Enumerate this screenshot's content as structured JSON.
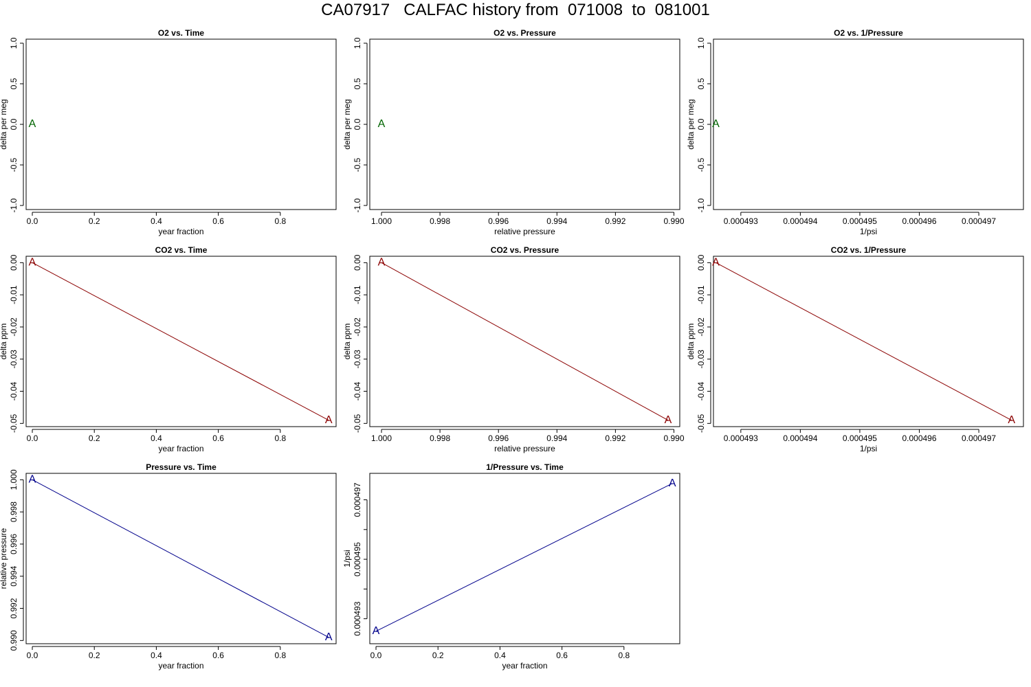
{
  "page": {
    "title": "CA07917   CALFAC history from  071008  to  081001"
  },
  "colors": {
    "o2": "#006400",
    "co2": "#8b0000",
    "pressure": "#00008b",
    "frame": "#000000"
  },
  "marker_label": "A",
  "chart_data": [
    {
      "type": "line",
      "title": "O2 vs. Time",
      "xlabel": "year fraction",
      "ylabel": "delta per meg",
      "x": [
        0.0
      ],
      "y": [
        0.0
      ],
      "xlim": [
        -0.02,
        0.98
      ],
      "ylim": [
        -1.05,
        1.05
      ],
      "xticks": [
        0.0,
        0.2,
        0.4,
        0.6,
        0.8
      ],
      "xtick_labels": [
        "0.0",
        "0.2",
        "0.4",
        "0.6",
        "0.8"
      ],
      "yticks": [
        -1.0,
        -0.5,
        0.0,
        0.5,
        1.0
      ],
      "ytick_labels": [
        "-1.0",
        "-0.5",
        "0.0",
        "0.5",
        "1.0"
      ],
      "color_key": "o2",
      "grid": false
    },
    {
      "type": "line",
      "title": "O2 vs. Pressure",
      "xlabel": "relative pressure",
      "ylabel": "delta per meg",
      "x": [
        1.0
      ],
      "y": [
        0.0
      ],
      "xlim": [
        1.0004,
        0.9898
      ],
      "ylim": [
        -1.05,
        1.05
      ],
      "xticks": [
        1.0,
        0.998,
        0.996,
        0.994,
        0.992,
        0.99
      ],
      "xtick_labels": [
        "1.000",
        "0.998",
        "0.996",
        "0.994",
        "0.992",
        "0.990"
      ],
      "yticks": [
        -1.0,
        -0.5,
        0.0,
        0.5,
        1.0
      ],
      "ytick_labels": [
        "-1.0",
        "-0.5",
        "0.0",
        "0.5",
        "1.0"
      ],
      "color_key": "o2",
      "grid": false
    },
    {
      "type": "line",
      "title": "O2 vs. 1/Pressure",
      "xlabel": "1/psi",
      "ylabel": "delta per meg",
      "x": [
        0.00049258
      ],
      "y": [
        0.0
      ],
      "xlim": [
        0.00049254,
        0.00049775
      ],
      "ylim": [
        -1.05,
        1.05
      ],
      "xticks": [
        0.000493,
        0.000494,
        0.000495,
        0.000496,
        0.000497
      ],
      "xtick_labels": [
        "0.000493",
        "0.000494",
        "0.000495",
        "0.000496",
        "0.000497"
      ],
      "yticks": [
        -1.0,
        -0.5,
        0.0,
        0.5,
        1.0
      ],
      "ytick_labels": [
        "-1.0",
        "-0.5",
        "0.0",
        "0.5",
        "1.0"
      ],
      "color_key": "o2",
      "grid": false
    },
    {
      "type": "line",
      "title": "CO2 vs. Time",
      "xlabel": "year fraction",
      "ylabel": "delta ppm",
      "x": [
        0.0,
        0.956
      ],
      "y": [
        0.0,
        -0.049
      ],
      "xlim": [
        -0.02,
        0.98
      ],
      "ylim": [
        -0.051,
        0.002
      ],
      "xticks": [
        0.0,
        0.2,
        0.4,
        0.6,
        0.8
      ],
      "xtick_labels": [
        "0.0",
        "0.2",
        "0.4",
        "0.6",
        "0.8"
      ],
      "yticks": [
        -0.05,
        -0.04,
        -0.03,
        -0.02,
        -0.01,
        0.0
      ],
      "ytick_labels": [
        "-0.05",
        "-0.04",
        "-0.03",
        "-0.02",
        "-0.01",
        "0.00"
      ],
      "color_key": "co2",
      "grid": false
    },
    {
      "type": "line",
      "title": "CO2 vs. Pressure",
      "xlabel": "relative pressure",
      "ylabel": "delta ppm",
      "x": [
        1.0,
        0.9902
      ],
      "y": [
        0.0,
        -0.049
      ],
      "xlim": [
        1.0004,
        0.9898
      ],
      "ylim": [
        -0.051,
        0.002
      ],
      "xticks": [
        1.0,
        0.998,
        0.996,
        0.994,
        0.992,
        0.99
      ],
      "xtick_labels": [
        "1.000",
        "0.998",
        "0.996",
        "0.994",
        "0.992",
        "0.990"
      ],
      "yticks": [
        -0.05,
        -0.04,
        -0.03,
        -0.02,
        -0.01,
        0.0
      ],
      "ytick_labels": [
        "-0.05",
        "-0.04",
        "-0.03",
        "-0.02",
        "-0.01",
        "0.00"
      ],
      "color_key": "co2",
      "grid": false
    },
    {
      "type": "line",
      "title": "CO2 vs. 1/Pressure",
      "xlabel": "1/psi",
      "ylabel": "delta ppm",
      "x": [
        0.00049258,
        0.00049755
      ],
      "y": [
        0.0,
        -0.049
      ],
      "xlim": [
        0.00049254,
        0.00049775
      ],
      "ylim": [
        -0.051,
        0.002
      ],
      "xticks": [
        0.000493,
        0.000494,
        0.000495,
        0.000496,
        0.000497
      ],
      "xtick_labels": [
        "0.000493",
        "0.000494",
        "0.000495",
        "0.000496",
        "0.000497"
      ],
      "yticks": [
        -0.05,
        -0.04,
        -0.03,
        -0.02,
        -0.01,
        0.0
      ],
      "ytick_labels": [
        "-0.05",
        "-0.04",
        "-0.03",
        "-0.02",
        "-0.01",
        "0.00"
      ],
      "color_key": "co2",
      "grid": false
    },
    {
      "type": "line",
      "title": "Pressure vs. Time",
      "xlabel": "year fraction",
      "ylabel": "relative pressure",
      "x": [
        0.0,
        0.956
      ],
      "y": [
        1.0,
        0.9902
      ],
      "xlim": [
        -0.02,
        0.98
      ],
      "ylim": [
        0.9898,
        1.0004
      ],
      "xticks": [
        0.0,
        0.2,
        0.4,
        0.6,
        0.8
      ],
      "xtick_labels": [
        "0.0",
        "0.2",
        "0.4",
        "0.6",
        "0.8"
      ],
      "yticks": [
        0.99,
        0.992,
        0.994,
        0.996,
        0.998,
        1.0
      ],
      "ytick_labels": [
        "0.990",
        "0.992",
        "0.994",
        "0.996",
        "0.998",
        "1.000"
      ],
      "color_key": "pressure",
      "grid": false
    },
    {
      "type": "line",
      "title": "1/Pressure vs. Time",
      "xlabel": "year fraction",
      "ylabel": "1/psi",
      "x": [
        0.0,
        0.956
      ],
      "y": [
        0.00049258,
        0.00049755
      ],
      "xlim": [
        -0.02,
        0.98
      ],
      "ylim": [
        0.00049216,
        0.00049789
      ],
      "xticks": [
        0.0,
        0.2,
        0.4,
        0.6,
        0.8
      ],
      "xtick_labels": [
        "0.0",
        "0.2",
        "0.4",
        "0.6",
        "0.8"
      ],
      "yticks": [
        0.000493,
        0.000494,
        0.000495,
        0.000496,
        0.000497
      ],
      "ytick_labels": [
        "0.000493",
        "",
        "0.000495",
        "",
        "0.000497"
      ],
      "color_key": "pressure",
      "grid": false
    }
  ]
}
